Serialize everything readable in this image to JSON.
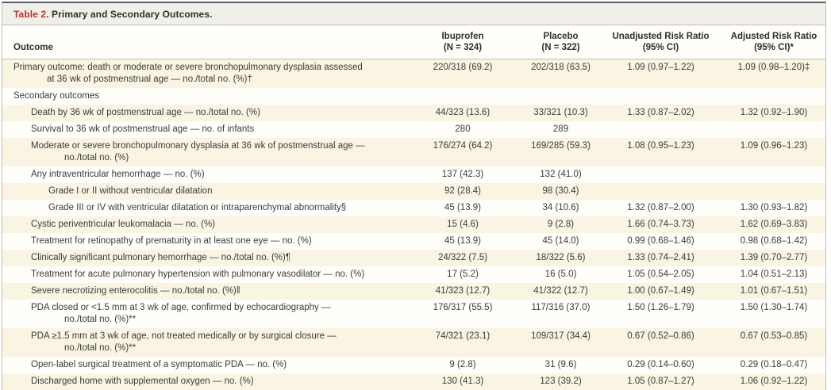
{
  "colors": {
    "accent_red": "#b5352d",
    "row_shade": "#faf4e2",
    "title_bar_bg": "#f1efe9",
    "top_border": "#596066",
    "rule": "#c0beb6",
    "text": "#3b3b3b"
  },
  "table": {
    "title_label": "Table 2.",
    "title_text": "Primary and Secondary Outcomes.",
    "columns": [
      {
        "label": "Outcome"
      },
      {
        "line1": "Ibuprofen",
        "line2": "(N = 324)"
      },
      {
        "line1": "Placebo",
        "line2": "(N = 322)"
      },
      {
        "line1": "Unadjusted Risk Ratio",
        "line2": "(95% CI)"
      },
      {
        "line1": "Adjusted Risk Ratio",
        "line2": "(95% CI)*"
      }
    ],
    "rows": [
      {
        "indent": 0,
        "lines": [
          "Primary outcome: death or moderate or severe bronchopulmonary dysplasia assessed",
          "at 36 wk of postmenstrual age — no./total no. (%)†"
        ],
        "ibuprofen": "220/318 (69.2)",
        "placebo": "202/318 (63.5)",
        "unadjusted": "1.09 (0.97–1.22)",
        "adjusted": "1.09 (0.98–1.20)‡"
      },
      {
        "indent": 0,
        "lines": [
          "Secondary outcomes"
        ],
        "ibuprofen": "",
        "placebo": "",
        "unadjusted": "",
        "adjusted": ""
      },
      {
        "indent": 1,
        "lines": [
          "Death by 36 wk of postmenstrual age — no./total no. (%)"
        ],
        "ibuprofen": "44/323 (13.6)",
        "placebo": "33/321 (10.3)",
        "unadjusted": "1.33 (0.87–2.02)",
        "adjusted": "1.32 (0.92–1.90)"
      },
      {
        "indent": 1,
        "lines": [
          "Survival to 36 wk of postmenstrual age — no. of infants"
        ],
        "ibuprofen": "280",
        "placebo": "289",
        "unadjusted": "",
        "adjusted": ""
      },
      {
        "indent": 1,
        "lines": [
          "Moderate or severe bronchopulmonary dysplasia at 36 wk of postmenstrual age —",
          "no./total no. (%)"
        ],
        "ibuprofen": "176/274 (64.2)",
        "placebo": "169/285 (59.3)",
        "unadjusted": "1.08 (0.95–1.23)",
        "adjusted": "1.09 (0.96–1.23)"
      },
      {
        "indent": 1,
        "lines": [
          "Any intraventricular hemorrhage — no. (%)"
        ],
        "ibuprofen": "137 (42.3)",
        "placebo": "132 (41.0)",
        "unadjusted": "",
        "adjusted": ""
      },
      {
        "indent": 2,
        "lines": [
          "Grade I or II without ventricular dilatation"
        ],
        "ibuprofen": "92 (28.4)",
        "placebo": "98 (30.4)",
        "unadjusted": "",
        "adjusted": ""
      },
      {
        "indent": 2,
        "lines": [
          "Grade III or IV with ventricular dilatation or intraparenchymal abnormality§"
        ],
        "ibuprofen": "45 (13.9)",
        "placebo": "34 (10.6)",
        "unadjusted": "1.32 (0.87–2.00)",
        "adjusted": "1.30 (0.93–1.82)"
      },
      {
        "indent": 1,
        "lines": [
          "Cystic periventricular leukomalacia — no. (%)"
        ],
        "ibuprofen": "15 (4.6)",
        "placebo": "9 (2.8)",
        "unadjusted": "1.66 (0.74–3.73)",
        "adjusted": "1.62 (0.69–3.83)"
      },
      {
        "indent": 1,
        "lines": [
          "Treatment for retinopathy of prematurity in at least one eye — no. (%)"
        ],
        "ibuprofen": "45 (13.9)",
        "placebo": "45 (14.0)",
        "unadjusted": "0.99 (0.68–1.46)",
        "adjusted": "0.98 (0.68–1.42)"
      },
      {
        "indent": 1,
        "lines": [
          "Clinically significant pulmonary hemorrhage — no./total no. (%)¶"
        ],
        "ibuprofen": "24/322 (7.5)",
        "placebo": "18/322 (5.6)",
        "unadjusted": "1.33 (0.74–2.41)",
        "adjusted": "1.39 (0.70–2.77)"
      },
      {
        "indent": 1,
        "lines": [
          "Treatment for acute pulmonary hypertension with pulmonary vasodilator — no. (%)"
        ],
        "ibuprofen": "17 (5.2)",
        "placebo": "16 (5.0)",
        "unadjusted": "1.05 (0.54–2.05)",
        "adjusted": "1.04 (0.51–2.13)"
      },
      {
        "indent": 1,
        "lines": [
          "Severe necrotizing enterocolitis — no./total no. (%)‖"
        ],
        "ibuprofen": "41/323 (12.7)",
        "placebo": "41/322 (12.7)",
        "unadjusted": "1.00 (0.67–1.49)",
        "adjusted": "1.01 (0.67–1.51)"
      },
      {
        "indent": 1,
        "lines": [
          "PDA closed or <1.5 mm at 3 wk of age, confirmed by echocardiography —",
          "no./total no. (%)**"
        ],
        "ibuprofen": "176/317 (55.5)",
        "placebo": "117/316 (37.0)",
        "unadjusted": "1.50 (1.26–1.79)",
        "adjusted": "1.50 (1.30–1.74)"
      },
      {
        "indent": 1,
        "lines": [
          "PDA ≥1.5 mm at 3 wk of age, not treated medically or by surgical closure —",
          "no./total no. (%)**"
        ],
        "ibuprofen": "74/321 (23.1)",
        "placebo": "109/317 (34.4)",
        "unadjusted": "0.67 (0.52–0.86)",
        "adjusted": "0.67 (0.53–0.85)"
      },
      {
        "indent": 1,
        "lines": [
          "Open-label surgical treatment of a symptomatic PDA — no. (%)"
        ],
        "ibuprofen": "9 (2.8)",
        "placebo": "31 (9.6)",
        "unadjusted": "0.29 (0.14–0.60)",
        "adjusted": "0.29 (0.18–0.47)"
      },
      {
        "indent": 1,
        "lines": [
          "Discharged home with supplemental oxygen — no. (%)"
        ],
        "ibuprofen": "130 (41.3)",
        "placebo": "123 (39.2)",
        "unadjusted": "1.05 (0.87–1.27)",
        "adjusted": "1.06 (0.92–1.22)"
      }
    ]
  }
}
